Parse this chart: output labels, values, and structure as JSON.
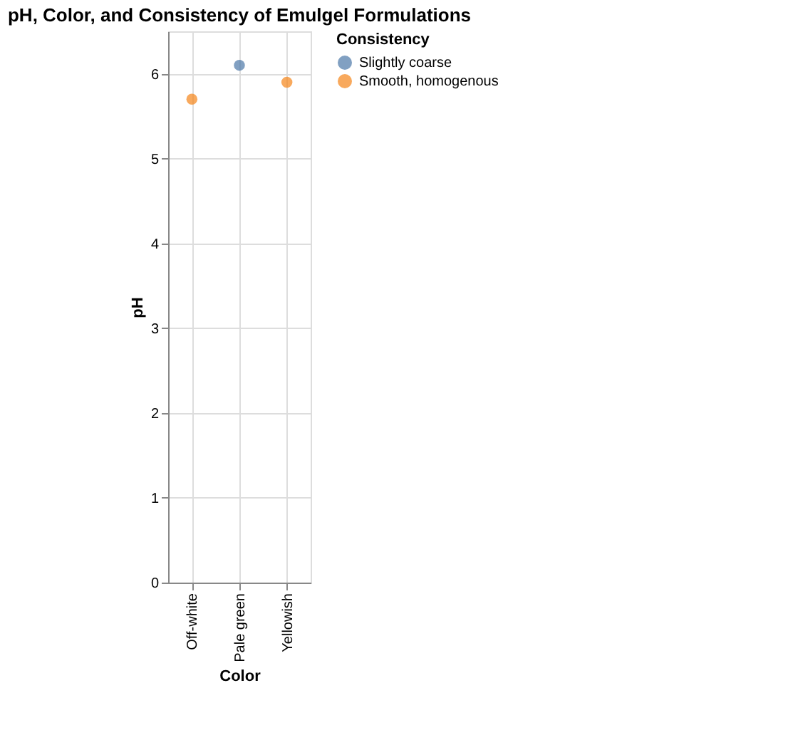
{
  "chart_data": {
    "type": "scatter",
    "title": "pH, Color, and Consistency of Emulgel Formulations",
    "xlabel": "Color",
    "ylabel": "pH",
    "legend_title": "Consistency",
    "categories": [
      "Off-white",
      "Pale green",
      "Yellowish"
    ],
    "series": [
      {
        "name": "Slightly coarse",
        "color": "#4c78a8",
        "values": [
          null,
          6.1,
          null
        ]
      },
      {
        "name": "Smooth, homogenous",
        "color": "#f58518",
        "values": [
          5.7,
          null,
          5.9
        ]
      }
    ],
    "ylim": [
      0,
      6.5
    ],
    "yticks": [
      0,
      1,
      2,
      3,
      4,
      5,
      6
    ],
    "grid": true,
    "legend": "top right",
    "marker": "circle"
  }
}
